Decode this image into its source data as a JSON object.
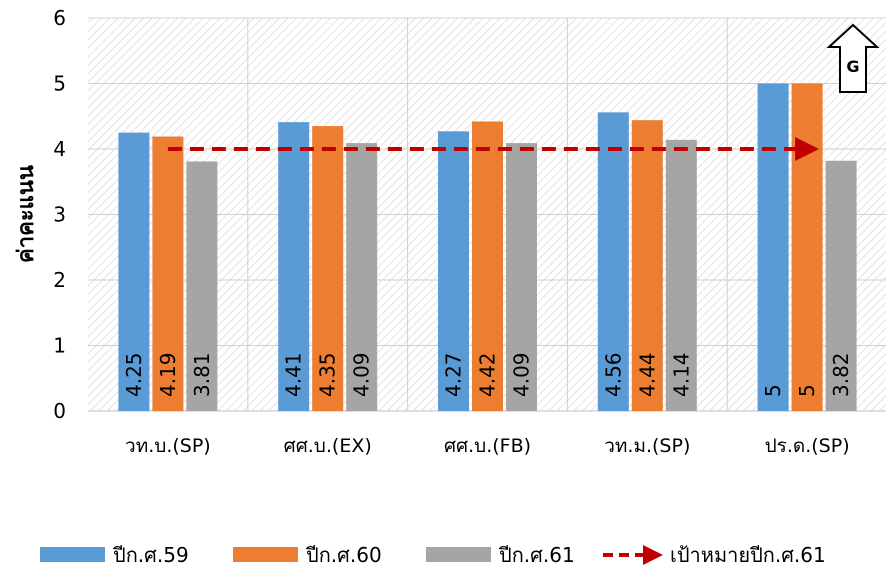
{
  "chart_data": {
    "type": "bar",
    "ylabel": "ค่าคะแนน",
    "ylim": [
      0,
      6
    ],
    "yticks": [
      0,
      1,
      2,
      3,
      4,
      5,
      6
    ],
    "categories": [
      "วท.บ.(SP)",
      "ศศ.บ.(EX)",
      "ศศ.บ.(FB)",
      "วท.ม.(SP)",
      "ปร.ด.(SP)"
    ],
    "series": [
      {
        "name": "ปีก.ศ.59",
        "color": "#5B9BD5",
        "values": [
          4.25,
          4.41,
          4.27,
          4.56,
          5
        ],
        "labels": [
          "4.25",
          "4.41",
          "4.27",
          "4.56",
          "5"
        ]
      },
      {
        "name": "ปีก.ศ.60",
        "color": "#ED7D31",
        "values": [
          4.19,
          4.35,
          4.42,
          4.44,
          5
        ],
        "labels": [
          "4.19",
          "4.35",
          "4.42",
          "4.44",
          "5"
        ]
      },
      {
        "name": "ปีก.ศ.61",
        "color": "#A5A5A5",
        "values": [
          3.81,
          4.09,
          4.09,
          4.14,
          3.82
        ],
        "labels": [
          "3.81",
          "4.09",
          "4.09",
          "4.14",
          "3.82"
        ]
      }
    ],
    "target": {
      "name": "เป้าหมายปีก.ศ.61",
      "value": 4,
      "color": "#C00000"
    },
    "badge": "G",
    "grid": true,
    "legend_position": "bottom"
  }
}
